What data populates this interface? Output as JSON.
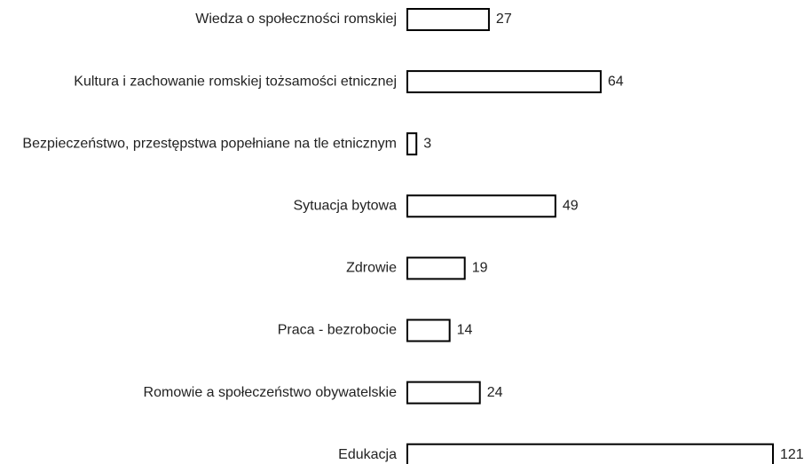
{
  "chart_data": {
    "type": "bar",
    "orientation": "horizontal",
    "categories": [
      "Wiedza o społeczności romskiej",
      "Kultura i zachowanie romskiej tożsamości etnicznej",
      "Bezpieczeństwo, przestępstwa popełniane na tle etnicznym",
      "Sytuacja bytowa",
      "Zdrowie",
      "Praca - bezrobocie",
      "Romowie a społeczeństwo obywatelskie",
      "Edukacja"
    ],
    "values": [
      27,
      64,
      3,
      49,
      19,
      14,
      24,
      121
    ],
    "color": "#ffffff",
    "edgecolor": "#000000",
    "grid": false
  }
}
